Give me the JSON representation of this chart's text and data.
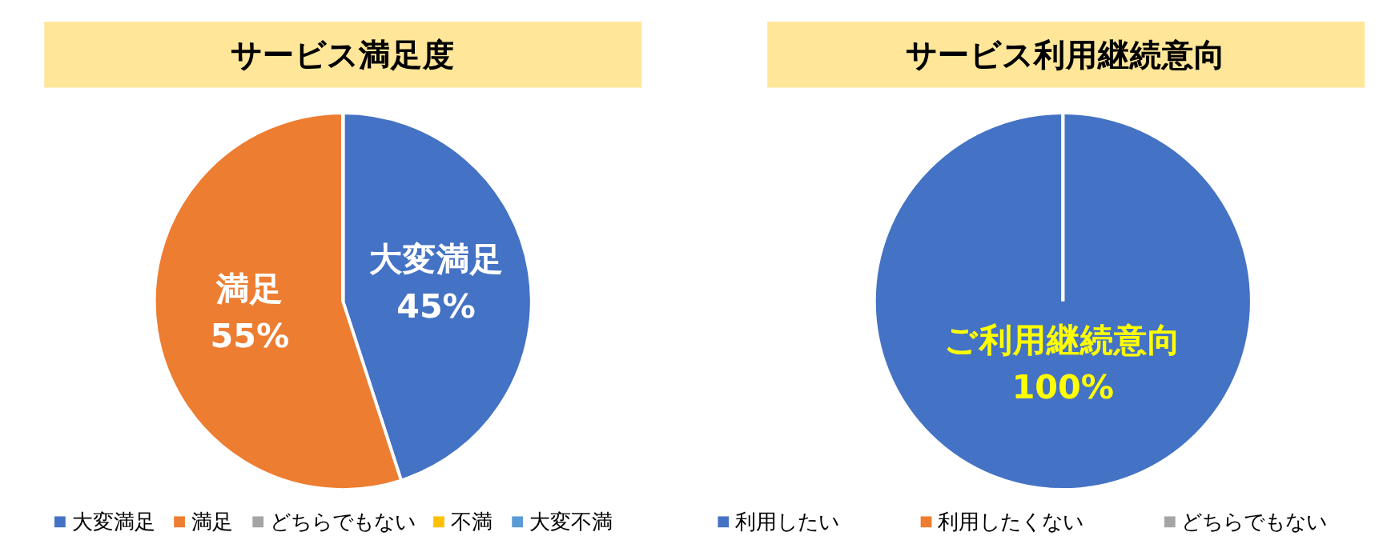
{
  "chart_data": [
    {
      "type": "pie",
      "title": "サービス満足度",
      "categories": [
        "大変満足",
        "満足",
        "どちらでもない",
        "不満",
        "大変不満"
      ],
      "values": [
        45,
        55,
        0,
        0,
        0
      ],
      "colors": [
        "#4472c4",
        "#ed7d31",
        "#a5a5a5",
        "#ffc000",
        "#5b9bd5"
      ],
      "value_labels": [
        "大変満足\n45%",
        "満足\n55%",
        null,
        null,
        null
      ],
      "legend": "bottom"
    },
    {
      "type": "pie",
      "title": "サービス利用継続意向",
      "categories": [
        "利用したい",
        "利用したくない",
        "どちらでもない"
      ],
      "values": [
        100,
        0,
        0
      ],
      "colors": [
        "#4472c4",
        "#ed7d31",
        "#a5a5a5"
      ],
      "value_labels": [
        "ご利用継続意向\n100%",
        null,
        null
      ],
      "legend": "bottom"
    }
  ]
}
